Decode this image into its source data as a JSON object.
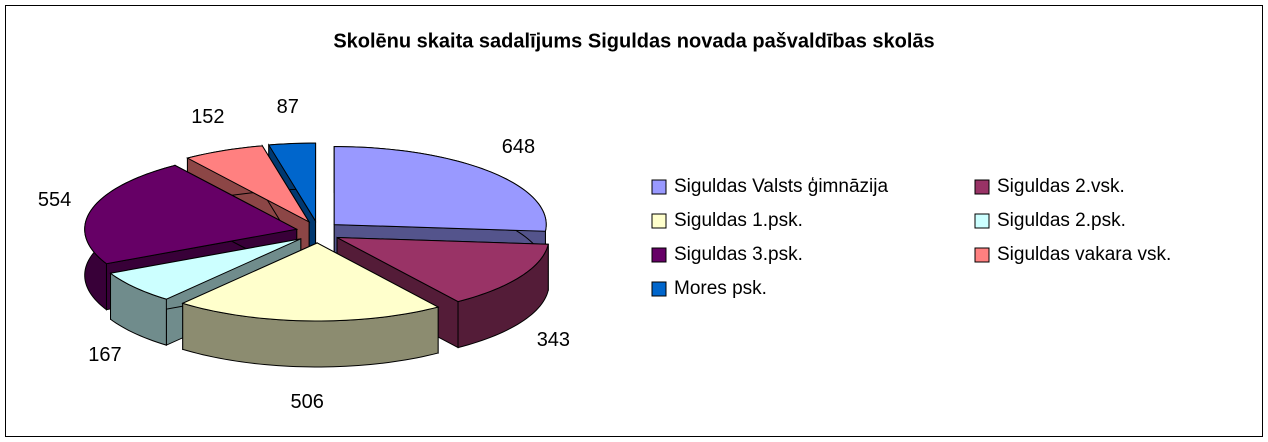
{
  "chart_data": {
    "type": "pie3d",
    "title": "Skolēnu skaita sadalījums Siguldas novada pašvaldības skolās",
    "categories": [
      "Siguldas Valsts ģimnāzija",
      "Siguldas 2.vsk.",
      "Siguldas 1.psk.",
      "Siguldas 2.psk.",
      "Siguldas 3.psk.",
      "Siguldas vakara vsk.",
      "Mores psk."
    ],
    "values": [
      648,
      343,
      506,
      167,
      554,
      152,
      87
    ],
    "colors": [
      "#9999ff",
      "#993366",
      "#ffffcc",
      "#ccffff",
      "#660066",
      "#ff8080",
      "#0066cc"
    ]
  }
}
